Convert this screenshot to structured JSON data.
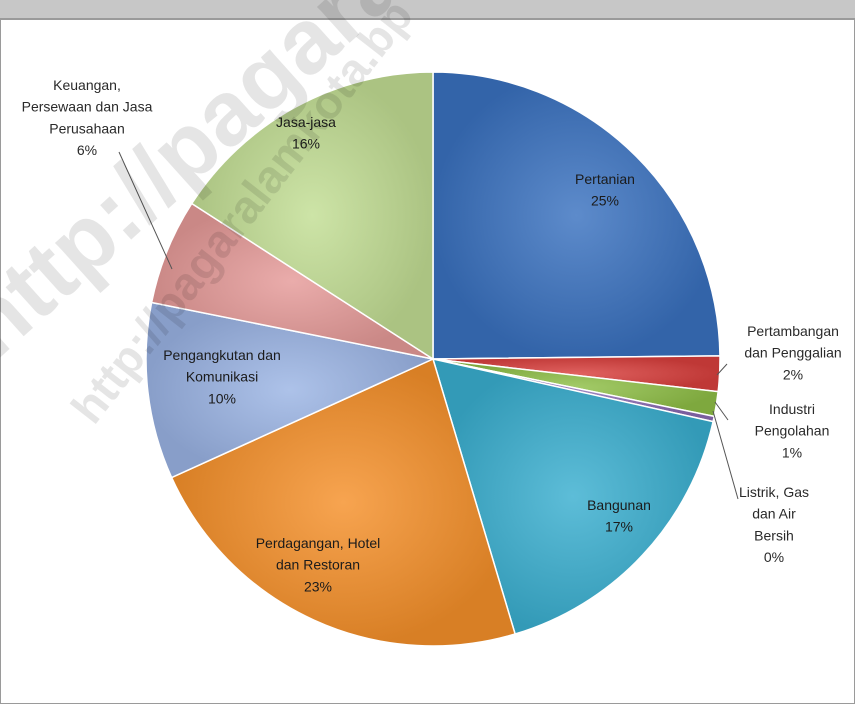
{
  "watermark": "http://pagaralamkota.bp",
  "chart_data": {
    "type": "pie",
    "slices": [
      {
        "lines": [
          "Pertanian",
          "25%"
        ],
        "value": 25,
        "color": "#3a72c0",
        "pos": "inside"
      },
      {
        "lines": [
          "Pertambangan",
          "dan Penggalian",
          "2%"
        ],
        "value": 2,
        "color": "#d9403d",
        "pos": "outside"
      },
      {
        "lines": [
          "Industri",
          "Pengolahan",
          "1%"
        ],
        "value": 1.4,
        "color": "#8fbf47",
        "pos": "outside"
      },
      {
        "lines": [
          "Listrik, Gas",
          "dan Air",
          "Bersih",
          "0%"
        ],
        "value": 0.3,
        "color": "#8b6bb3",
        "pos": "outside"
      },
      {
        "lines": [
          "Bangunan",
          "17%"
        ],
        "value": 17,
        "color": "#3aafd0",
        "pos": "inside"
      },
      {
        "lines": [
          "Perdagangan, Hotel",
          "dan Restoran",
          "23%"
        ],
        "value": 23,
        "color": "#f5902a",
        "pos": "inside"
      },
      {
        "lines": [
          "Pengangkutan dan",
          "Komunikasi",
          "10%"
        ],
        "value": 10,
        "color": "#9bb4e4",
        "pos": "inside"
      },
      {
        "lines": [
          "Keuangan,",
          "Persewaan dan Jasa",
          "Perusahaan",
          "6%"
        ],
        "value": 6,
        "color": "#e59a98",
        "pos": "outside"
      },
      {
        "lines": [
          "Jasa-jasa",
          "16%"
        ],
        "value": 16,
        "color": "#c2de94",
        "pos": "inside"
      }
    ]
  }
}
